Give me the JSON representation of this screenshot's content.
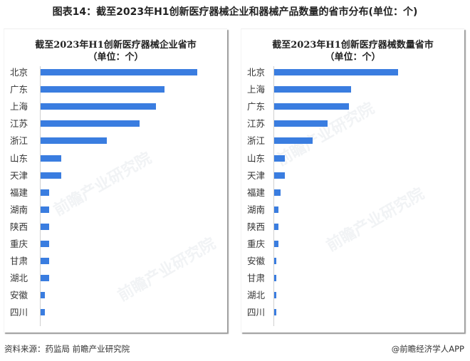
{
  "figure": {
    "title": "图表14：截至2023年H1创新医疗器械企业和器械产品数量的省市分布(单位：个)",
    "source": "资料来源：药监局 前瞻产业研究院",
    "credit": "@前瞻经济学人APP",
    "watermark": "前瞻产业研究院",
    "bar_color": "#3a7de0"
  },
  "chart_data": [
    {
      "type": "bar",
      "orientation": "horizontal",
      "title": "截至2023年H1创新医疗器械企业省市",
      "subtitle": "（单位：个）",
      "xlabel": "",
      "ylabel": "",
      "grid": false,
      "legend": null,
      "categories": [
        "北京",
        "广东",
        "上海",
        "江苏",
        "浙江",
        "山东",
        "天津",
        "福建",
        "湖南",
        "陕西",
        "重庆",
        "甘肃",
        "湖北",
        "安徽",
        "四川"
      ],
      "values": [
        38,
        30,
        28,
        24,
        16,
        5,
        5,
        2,
        2,
        2,
        2,
        2,
        2,
        1,
        1
      ],
      "xlim": [
        0,
        40
      ]
    },
    {
      "type": "bar",
      "orientation": "horizontal",
      "title": "截至2023年H1创新医疗器械数量省市",
      "subtitle": "（单位：个）",
      "xlabel": "",
      "ylabel": "",
      "grid": false,
      "legend": null,
      "categories": [
        "北京",
        "上海",
        "广东",
        "江苏",
        "浙江",
        "山东",
        "天津",
        "福建",
        "湖南",
        "陕西",
        "重庆",
        "安徽",
        "甘肃",
        "湖北",
        "四川"
      ],
      "values": [
        58,
        36,
        35,
        25,
        18,
        5,
        5,
        3,
        2,
        2,
        2,
        1,
        1,
        1,
        1
      ],
      "xlim": [
        0,
        60
      ]
    }
  ]
}
